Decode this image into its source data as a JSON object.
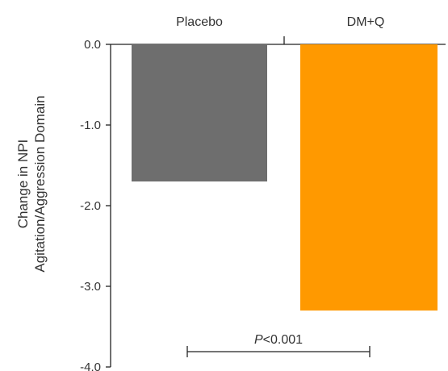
{
  "chart_data": {
    "type": "bar",
    "categories": [
      "Placebo",
      "DM+Q"
    ],
    "values": [
      -1.7,
      -3.3
    ],
    "colors": [
      "#6e6e6e",
      "#ff9900"
    ],
    "ylabel_lines": [
      "Change in NPI",
      "Agitation/Aggression Domain"
    ],
    "ylim": [
      -4.0,
      0.0
    ],
    "yticks": [
      "0.0",
      "-1.0",
      "-2.0",
      "-3.0",
      "-4.0"
    ],
    "ytick_values": [
      0,
      -1,
      -2,
      -3,
      -4
    ],
    "category_axis_position": "top",
    "grid": false,
    "legend": "none",
    "annotation": {
      "p_italic": "P",
      "p_rest": "<0.001"
    }
  }
}
